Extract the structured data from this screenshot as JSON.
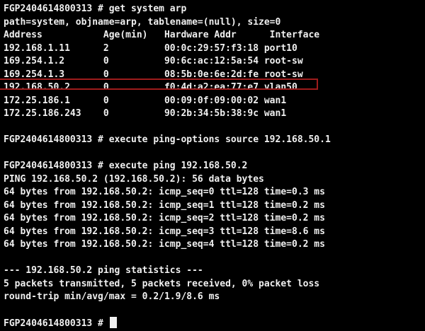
{
  "terminal": {
    "colors": {
      "background": "#000000",
      "foreground": "#f0f0f0",
      "highlight_border": "#9e1c1c",
      "cursor": "#f0f0f0"
    },
    "hostname_prompt": "FGP2404614800313 #",
    "commands": [
      "get system arp",
      "execute ping-options source 192.168.50.1",
      "execute ping 192.168.50.2"
    ],
    "arp_table": {
      "meta": "path=system, objname=arp, tablename=(null), size=0",
      "headers": [
        "Address",
        "Age(min)",
        "Hardware Addr",
        "Interface"
      ],
      "rows": [
        [
          "192.168.1.11",
          "2",
          "00:0c:29:57:f3:18",
          "port10"
        ],
        [
          "169.254.1.2",
          "0",
          "90:6c:ac:12:5a:54",
          "root-sw"
        ],
        [
          "169.254.1.3",
          "0",
          "08:5b:0e:6e:2d:fe",
          "root-sw"
        ],
        [
          "192.168.50.2",
          "0",
          "f0:4d:a2:ea:77:e7",
          "vlan50"
        ],
        [
          "172.25.186.1",
          "0",
          "00:09:0f:09:00:02",
          "wan1"
        ],
        [
          "172.25.186.243",
          "0",
          "90:2b:34:5b:38:9c",
          "wan1"
        ]
      ],
      "highlighted_row_index": 3
    },
    "ping": {
      "source": "192.168.50.1",
      "target": "192.168.50.2",
      "data_bytes": 56,
      "replies": [
        {
          "icmp_seq": 0,
          "ttl": 128,
          "time_ms": 0.3
        },
        {
          "icmp_seq": 1,
          "ttl": 128,
          "time_ms": 0.2
        },
        {
          "icmp_seq": 2,
          "ttl": 128,
          "time_ms": 0.2
        },
        {
          "icmp_seq": 3,
          "ttl": 128,
          "time_ms": 8.6
        },
        {
          "icmp_seq": 4,
          "ttl": 128,
          "time_ms": 0.2
        }
      ],
      "packets_transmitted": 5,
      "packets_received": 5,
      "packet_loss": "0%",
      "rtt_min_avg_max_ms": "0.2/1.9/8.6"
    },
    "lines": [
      {
        "text": "FGP2404614800313 # get system arp"
      },
      {
        "text": "path=system, objname=arp, tablename=(null), size=0"
      },
      {
        "text": "Address           Age(min)   Hardware Addr      Interface"
      },
      {
        "text": "192.168.1.11      2          00:0c:29:57:f3:18 port10"
      },
      {
        "text": "169.254.1.2       0          90:6c:ac:12:5a:54 root-sw"
      },
      {
        "text": "169.254.1.3       0          08:5b:0e:6e:2d:fe root-sw"
      },
      {
        "text": "192.168.50.2      0          f0:4d:a2:ea:77:e7 vlan50",
        "highlight": true
      },
      {
        "text": "172.25.186.1      0          00:09:0f:09:00:02 wan1"
      },
      {
        "text": "172.25.186.243    0          90:2b:34:5b:38:9c wan1"
      },
      {
        "text": ""
      },
      {
        "text": "FGP2404614800313 # execute ping-options source 192.168.50.1"
      },
      {
        "text": ""
      },
      {
        "text": "FGP2404614800313 # execute ping 192.168.50.2"
      },
      {
        "text": "PING 192.168.50.2 (192.168.50.2): 56 data bytes"
      },
      {
        "text": "64 bytes from 192.168.50.2: icmp_seq=0 ttl=128 time=0.3 ms"
      },
      {
        "text": "64 bytes from 192.168.50.2: icmp_seq=1 ttl=128 time=0.2 ms"
      },
      {
        "text": "64 bytes from 192.168.50.2: icmp_seq=2 ttl=128 time=0.2 ms"
      },
      {
        "text": "64 bytes from 192.168.50.2: icmp_seq=3 ttl=128 time=8.6 ms"
      },
      {
        "text": "64 bytes from 192.168.50.2: icmp_seq=4 ttl=128 time=0.2 ms"
      },
      {
        "text": ""
      },
      {
        "text": "--- 192.168.50.2 ping statistics ---"
      },
      {
        "text": "5 packets transmitted, 5 packets received, 0% packet loss"
      },
      {
        "text": "round-trip min/avg/max = 0.2/1.9/8.6 ms"
      },
      {
        "text": ""
      },
      {
        "text": "FGP2404614800313 # ",
        "cursor": true
      }
    ]
  }
}
